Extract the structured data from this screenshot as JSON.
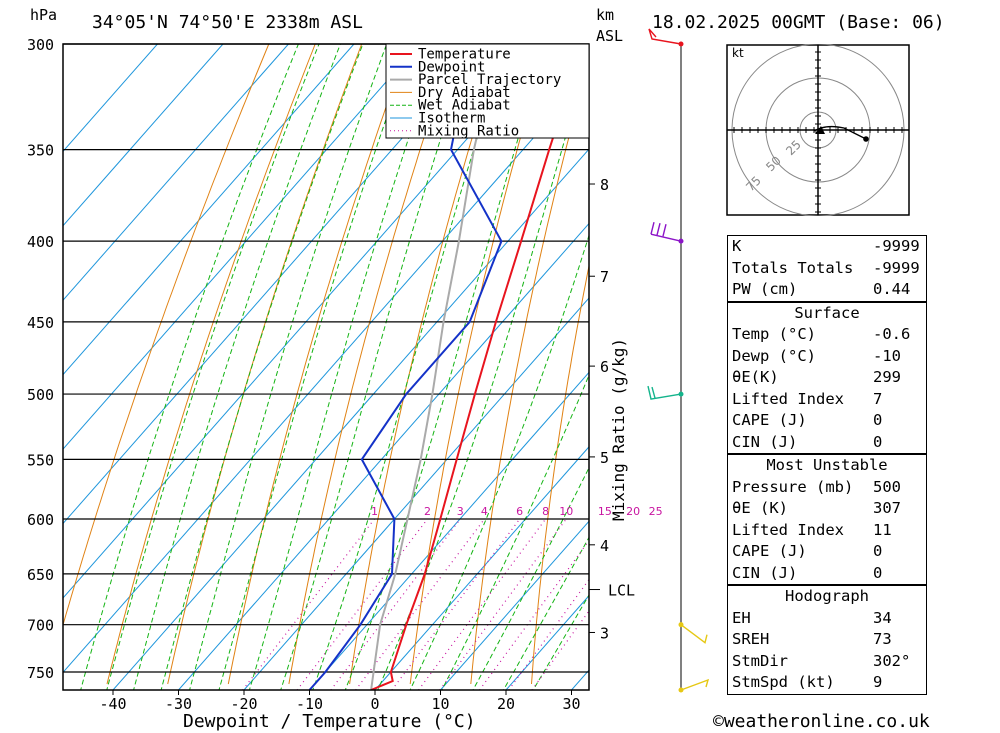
{
  "header": {
    "location": "34°05'N 74°50'E 2338m ASL",
    "date": "18.02.2025 00GMT (Base: 06)",
    "hpa_label": "hPa",
    "km_label": "km",
    "asl_label": "ASL"
  },
  "chart_data": {
    "type": "skew-t",
    "xlabel": "Dewpoint / Temperature (°C)",
    "right_label": "Mixing Ratio (g/kg)",
    "pressure_levels": [
      300,
      350,
      400,
      450,
      500,
      550,
      600,
      650,
      700,
      750
    ],
    "pressure_range": [
      300,
      770
    ],
    "temperature_ticks": [
      -40,
      -30,
      -20,
      -10,
      0,
      10,
      20,
      30
    ],
    "legend": [
      "Temperature",
      "Dewpoint",
      "Parcel Trajectory",
      "Dry Adiabat",
      "Wet Adiabat",
      "Isotherm",
      "Mixing Ratio"
    ],
    "colors": {
      "temperature": "#e8141e",
      "dewpoint": "#1432c8",
      "parcel": "#aaaaaa",
      "dry_adiabat": "#e08214",
      "wet_adiabat": "#14b414",
      "isotherm": "#1e96dc",
      "mixing_ratio": "#c814a0"
    },
    "temperature_profile": [
      {
        "p": 770,
        "t": -0.6
      },
      {
        "p": 760,
        "t": 1.5
      },
      {
        "p": 750,
        "t": 0.0
      },
      {
        "p": 700,
        "t": -4.0
      },
      {
        "p": 650,
        "t": -8.0
      },
      {
        "p": 600,
        "t": -13.0
      },
      {
        "p": 550,
        "t": -18.5
      },
      {
        "p": 500,
        "t": -24.5
      },
      {
        "p": 450,
        "t": -31.0
      },
      {
        "p": 400,
        "t": -38.0
      },
      {
        "p": 350,
        "t": -46.0
      },
      {
        "p": 300,
        "t": -55.0
      }
    ],
    "dewpoint_profile": [
      {
        "p": 770,
        "t": -10.0
      },
      {
        "p": 750,
        "t": -10.0
      },
      {
        "p": 700,
        "t": -11.0
      },
      {
        "p": 650,
        "t": -13.0
      },
      {
        "p": 600,
        "t": -20.0
      },
      {
        "p": 550,
        "t": -33.0
      },
      {
        "p": 500,
        "t": -35.0
      },
      {
        "p": 450,
        "t": -35.0
      },
      {
        "p": 400,
        "t": -41.0
      },
      {
        "p": 350,
        "t": -61.0
      },
      {
        "p": 300,
        "t": -72.0
      }
    ],
    "parcel_profile": [
      {
        "p": 770,
        "t": -0.6
      },
      {
        "p": 700,
        "t": -8.0
      },
      {
        "p": 650,
        "t": -12.5
      },
      {
        "p": 600,
        "t": -18.0
      },
      {
        "p": 550,
        "t": -24.0
      },
      {
        "p": 500,
        "t": -31.0
      },
      {
        "p": 450,
        "t": -39.0
      },
      {
        "p": 400,
        "t": -47.5
      },
      {
        "p": 350,
        "t": -57.5
      },
      {
        "p": 300,
        "t": -68.0
      }
    ],
    "mixing_ratio_labels": [
      1,
      2,
      3,
      4,
      6,
      8,
      10,
      15,
      20,
      25
    ],
    "km_ticks": [
      {
        "km": 3,
        "p": 708
      },
      {
        "km": 4,
        "p": 623
      },
      {
        "km": 5,
        "p": 548
      },
      {
        "km": 6,
        "p": 480
      },
      {
        "km": 7,
        "p": 421
      },
      {
        "km": 8,
        "p": 368
      }
    ],
    "lcl": {
      "label": "LCL",
      "p": 665
    },
    "wind_levels": [
      300,
      400,
      500,
      700,
      770
    ]
  },
  "hodograph": {
    "unit": "kt",
    "rings": [
      "25",
      "50",
      "75"
    ]
  },
  "indices": {
    "general": [
      {
        "k": "K",
        "v": "-9999"
      },
      {
        "k": "Totals Totals",
        "v": "-9999"
      },
      {
        "k": "PW (cm)",
        "v": "0.44"
      }
    ],
    "surface_title": "Surface",
    "surface": [
      {
        "k": "Temp (°C)",
        "v": "-0.6"
      },
      {
        "k": "Dewp (°C)",
        "v": "-10"
      },
      {
        "k": "θE(K)",
        "v": "299"
      },
      {
        "k": "Lifted Index",
        "v": "7"
      },
      {
        "k": "CAPE (J)",
        "v": "0"
      },
      {
        "k": "CIN (J)",
        "v": "0"
      }
    ],
    "mu_title": "Most Unstable",
    "mu": [
      {
        "k": "Pressure (mb)",
        "v": "500"
      },
      {
        "k": "θE (K)",
        "v": "307"
      },
      {
        "k": "Lifted Index",
        "v": "11"
      },
      {
        "k": "CAPE (J)",
        "v": "0"
      },
      {
        "k": "CIN (J)",
        "v": "0"
      }
    ],
    "hodo_title": "Hodograph",
    "hodo": [
      {
        "k": "EH",
        "v": "34"
      },
      {
        "k": "SREH",
        "v": "73"
      },
      {
        "k": "StmDir",
        "v": "302°"
      },
      {
        "k": "StmSpd (kt)",
        "v": "9"
      }
    ]
  },
  "footer": {
    "copyright": "©weatheronline.co.uk"
  }
}
